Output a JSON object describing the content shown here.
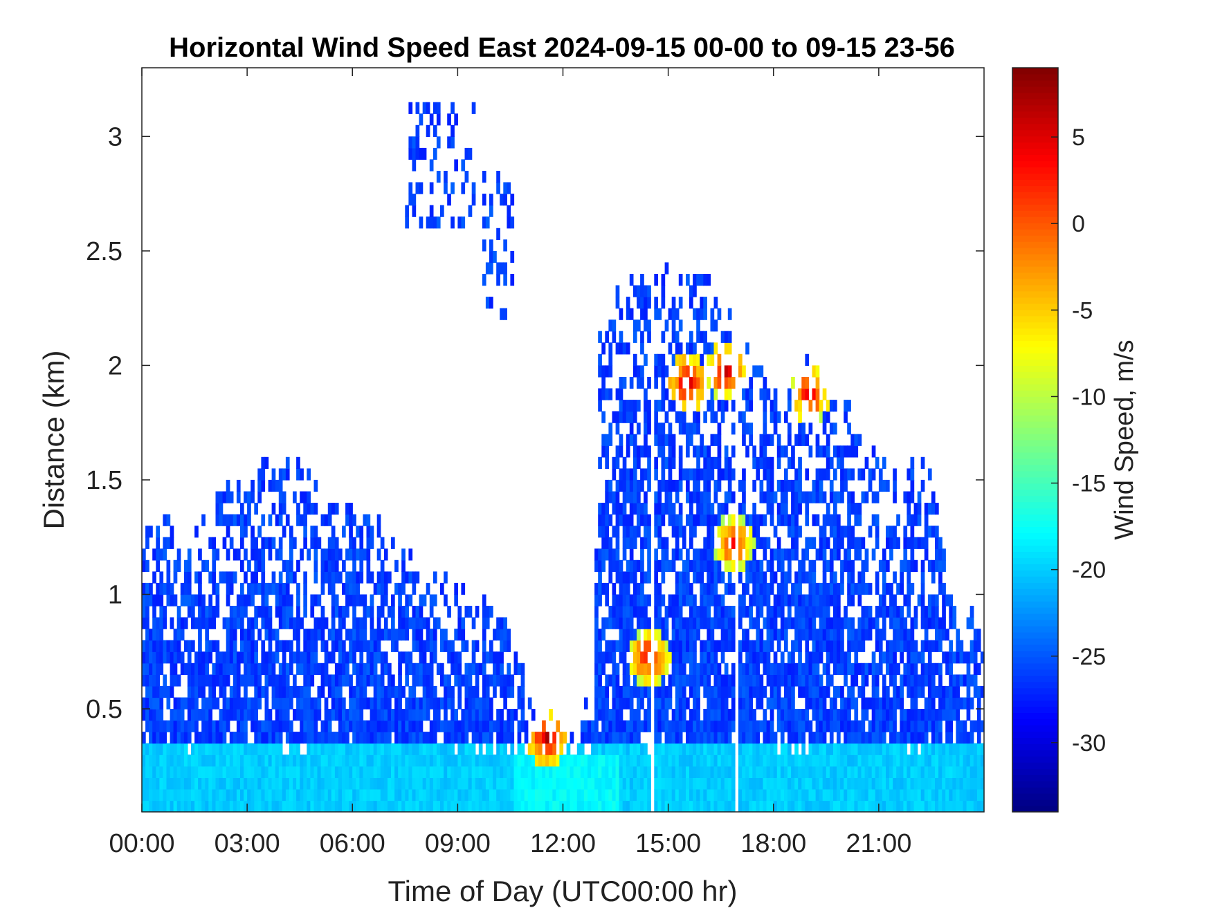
{
  "chart_data": {
    "type": "heatmap",
    "title": "Horizontal Wind Speed East 2024-09-15 00-00 to 09-15 23-56",
    "xlabel": "Time of Day (UTC00:00 hr)",
    "ylabel": "Distance (km)",
    "xlim": [
      0,
      24
    ],
    "ylim": [
      0.05,
      3.3
    ],
    "xticks": [
      0,
      3,
      6,
      9,
      12,
      15,
      18,
      21
    ],
    "xticklabels": [
      "00:00",
      "03:00",
      "06:00",
      "09:00",
      "12:00",
      "15:00",
      "18:00",
      "21:00"
    ],
    "yticks": [
      0.5,
      1,
      1.5,
      2,
      2.5,
      3
    ],
    "yticklabels": [
      "0.5",
      "1",
      "1.5",
      "2",
      "2.5",
      "3"
    ],
    "colorbar": {
      "label": "Wind Speed, m/s",
      "range": [
        -34,
        9
      ],
      "ticks": [
        5,
        0,
        -5,
        -10,
        -15,
        -20,
        -25,
        -30
      ],
      "ticklabels": [
        "5",
        "0",
        "-5",
        "-10",
        "-15",
        "-20",
        "-25",
        "-30"
      ],
      "colormap": "jet"
    },
    "grid": false,
    "data_summary": {
      "time_resolution_hours": 0.1,
      "dominant_value_ms": -26,
      "near_surface_value_ms": -20,
      "data_top_profile": [
        {
          "t": 0.0,
          "top_km": 1.3
        },
        {
          "t": 1.5,
          "top_km": 1.3
        },
        {
          "t": 2.5,
          "top_km": 1.5
        },
        {
          "t": 4.0,
          "top_km": 1.55
        },
        {
          "t": 5.0,
          "top_km": 1.45
        },
        {
          "t": 6.5,
          "top_km": 1.3
        },
        {
          "t": 8.0,
          "top_km": 1.05
        },
        {
          "t": 9.5,
          "top_km": 0.95
        },
        {
          "t": 10.5,
          "top_km": 0.85
        },
        {
          "t": 11.0,
          "top_km": 0.45
        },
        {
          "t": 12.0,
          "top_km": 0.4
        },
        {
          "t": 12.8,
          "top_km": 0.5
        },
        {
          "t": 13.0,
          "top_km": 2.1
        },
        {
          "t": 13.5,
          "top_km": 2.3
        },
        {
          "t": 15.0,
          "top_km": 2.4
        },
        {
          "t": 16.0,
          "top_km": 2.35
        },
        {
          "t": 17.0,
          "top_km": 2.1
        },
        {
          "t": 18.0,
          "top_km": 1.9
        },
        {
          "t": 19.0,
          "top_km": 2.0
        },
        {
          "t": 20.0,
          "top_km": 1.8
        },
        {
          "t": 21.0,
          "top_km": 1.55
        },
        {
          "t": 22.5,
          "top_km": 1.5
        },
        {
          "t": 23.0,
          "top_km": 1.0
        },
        {
          "t": 24.0,
          "top_km": 0.75
        }
      ],
      "isolated_high_returns": [
        {
          "t_start": 7.5,
          "t_end": 9.4,
          "z_low_km": 2.6,
          "z_high_km": 3.1
        },
        {
          "t_start": 9.7,
          "t_end": 10.5,
          "z_low_km": 2.2,
          "z_high_km": 2.8
        }
      ],
      "hotspots": [
        {
          "t": 11.5,
          "z_km": 0.35,
          "value_ms": 7
        },
        {
          "t": 15.5,
          "z_km": 1.9,
          "value_ms": 6
        },
        {
          "t": 16.6,
          "z_km": 1.95,
          "value_ms": 6
        },
        {
          "t": 19.0,
          "z_km": 1.85,
          "value_ms": 5
        },
        {
          "t": 14.4,
          "z_km": 0.7,
          "value_ms": 5
        },
        {
          "t": 16.8,
          "z_km": 1.2,
          "value_ms": 4
        }
      ],
      "gaps": [
        {
          "t": 14.5,
          "width_h": 0.1
        },
        {
          "t": 16.95,
          "width_h": 0.08
        }
      ]
    }
  }
}
